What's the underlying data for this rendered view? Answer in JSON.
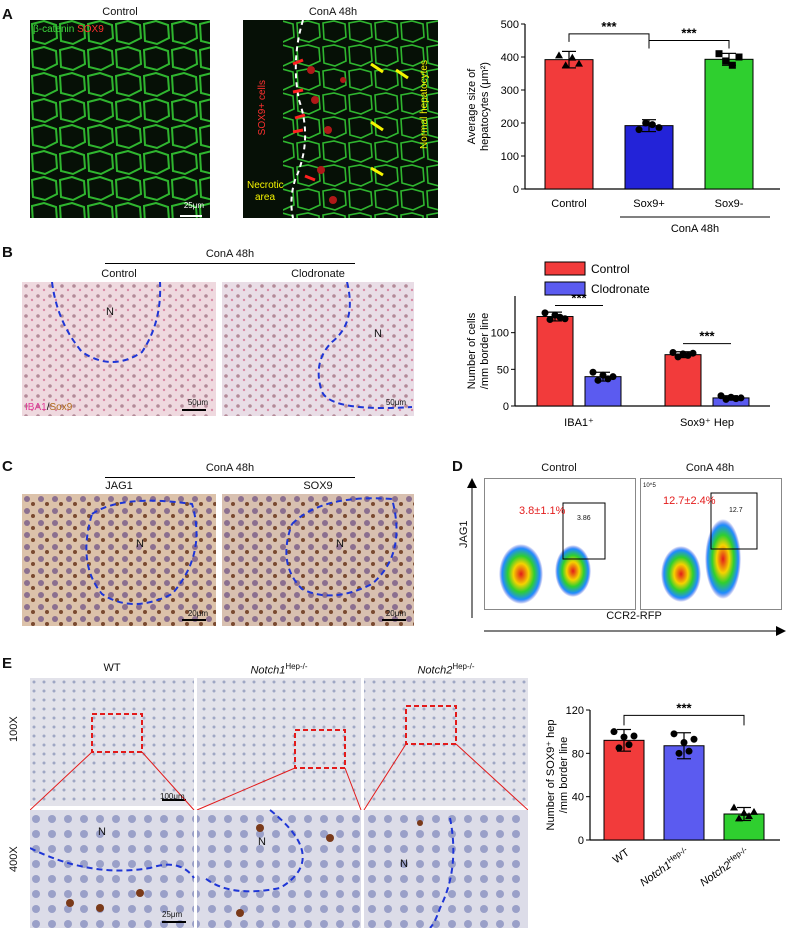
{
  "panels": {
    "A": {
      "label": "A",
      "img1_title": "Control",
      "img2_title": "ConA 48h",
      "stain_b": "β-catenin",
      "stain_s": "SOX9",
      "scale": "25μm",
      "sox_cells": "SOX9+ cells",
      "necrotic_1": "Necrotic",
      "necrotic_2": "area",
      "normal_hep": "Normal hepatocytes"
    },
    "B": {
      "label": "B",
      "header": "ConA 48h",
      "col1": "Control",
      "col2": "Clodronate",
      "n_mark": "N",
      "stain_i": "IBA1",
      "stain_s": "Sox9",
      "scale": "50μm"
    },
    "C": {
      "label": "C",
      "header": "ConA 48h",
      "col1": "JAG1",
      "col2": "SOX9",
      "n_mark": "N",
      "scale": "20μm"
    },
    "D": {
      "label": "D",
      "col1": "Control",
      "col2": "ConA 48h",
      "pct1": "3.8±1.1%",
      "pct2": "12.7±2.4%",
      "gate1": "3.86",
      "gate2": "12.7",
      "ylabel": "JAG1",
      "xlabel": "CCR2-RFP",
      "ytick_hi": "10^5"
    },
    "E": {
      "label": "E",
      "col1": "WT",
      "col2_main": "Notch1",
      "col2_sup": "Hep-/-",
      "col3_main": "Notch2",
      "col3_sup": "Hep-/-",
      "row1": "100X",
      "row2": "400X",
      "n_mark": "N",
      "scale1": "100μm",
      "scale2": "25μm"
    }
  },
  "chart_data": [
    {
      "type": "bar",
      "panel": "A",
      "categories": [
        "Control",
        "Sox9+",
        "Sox9-"
      ],
      "group_label": "ConA 48h",
      "values": [
        392,
        192,
        393
      ],
      "errors": [
        25,
        18,
        18
      ],
      "points": [
        [
          405,
          375,
          398,
          380
        ],
        [
          180,
          200,
          195,
          186
        ],
        [
          410,
          388,
          375,
          400
        ]
      ],
      "colors": [
        "#f23b3b",
        "#2323d8",
        "#2fcf2f"
      ],
      "ylabel_1": "Average size of",
      "ylabel_2": "hepatocytes (μm²)",
      "ylim": [
        0,
        500
      ],
      "yticks": [
        0,
        100,
        200,
        300,
        400,
        500
      ],
      "significance": "***"
    },
    {
      "type": "bar",
      "panel": "B",
      "categories": [
        "IBA1⁺",
        "Sox9⁺ Hep"
      ],
      "series": [
        {
          "name": "Control",
          "color": "#f23b3b",
          "values": [
            122,
            70
          ],
          "errors": [
            6,
            4
          ],
          "points": [
            [
              127,
              118,
              124,
              121,
              119
            ],
            [
              73,
              67,
              71,
              69,
              72
            ]
          ]
        },
        {
          "name": "Clodronate",
          "color": "#5b5bf0",
          "values": [
            40,
            11
          ],
          "errors": [
            6,
            3
          ],
          "points": [
            [
              46,
              35,
              42,
              37,
              40
            ],
            [
              14,
              9,
              12,
              10,
              11
            ]
          ]
        }
      ],
      "ylabel_1": "Number of cells",
      "ylabel_2": "/mm border line",
      "ylim": [
        0,
        150
      ],
      "yticks": [
        0,
        50,
        100
      ],
      "significance": "***"
    },
    {
      "type": "bar",
      "panel": "E",
      "categories": [
        "WT",
        "Notch1Hep-/-",
        "Notch2Hep-/-"
      ],
      "values": [
        92,
        87,
        24
      ],
      "errors": [
        10,
        12,
        6
      ],
      "points": [
        [
          100,
          85,
          95,
          88,
          96
        ],
        [
          98,
          80,
          90,
          82,
          93
        ],
        [
          30,
          20,
          25,
          22,
          26
        ]
      ],
      "colors": [
        "#f23b3b",
        "#5b5bf0",
        "#2fcf2f"
      ],
      "ylabel_1": "Number of SOX9⁺ hep",
      "ylabel_2": "/mm border line",
      "ylim": [
        0,
        120
      ],
      "yticks": [
        0,
        40,
        80,
        120
      ],
      "significance": "***"
    }
  ]
}
